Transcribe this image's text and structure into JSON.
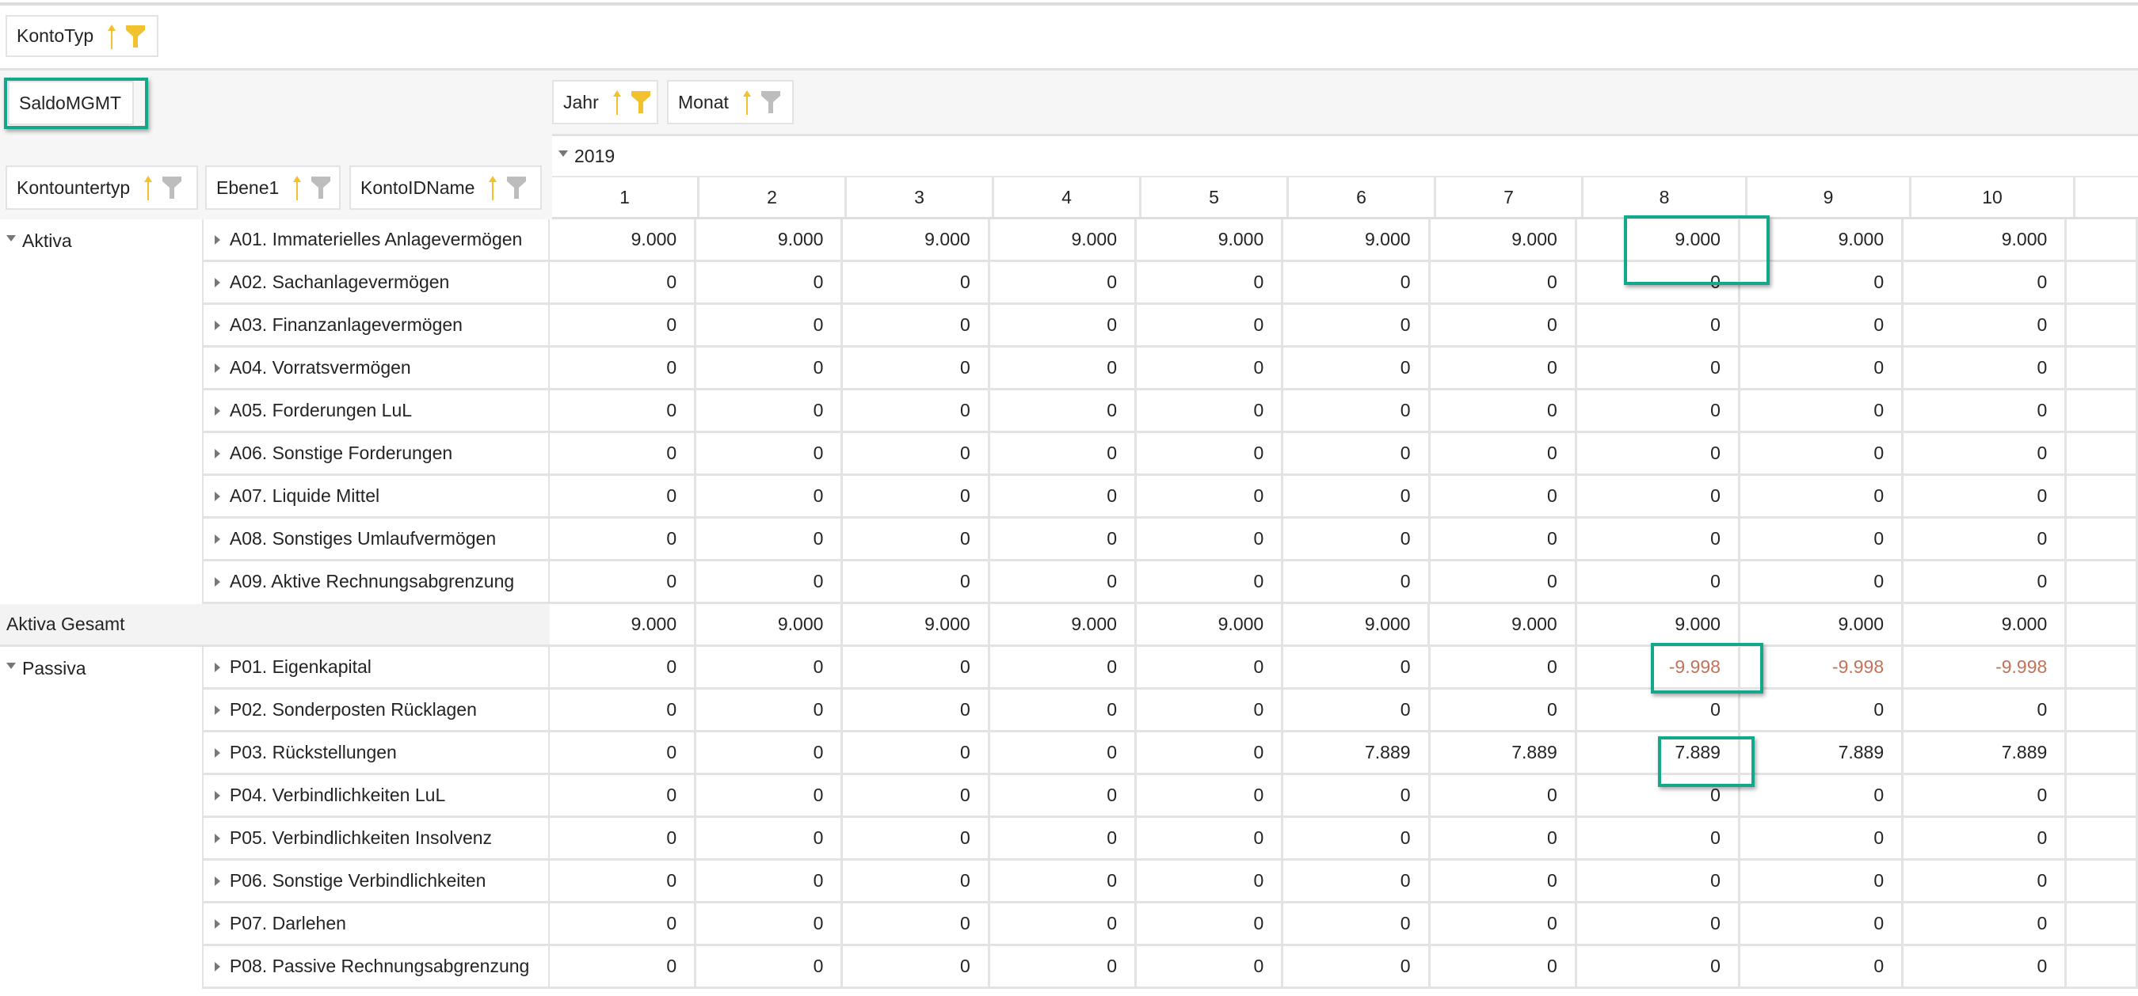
{
  "filters": {
    "page_filter": {
      "label": "KontoTyp",
      "filter_active": true
    },
    "value_field": {
      "label": "SaldoMGMT"
    },
    "column_fields": [
      {
        "label": "Jahr",
        "filter_active": true
      },
      {
        "label": "Monat",
        "filter_active": false
      }
    ],
    "row_fields": [
      {
        "label": "Kontountertyp",
        "filter_active": false
      },
      {
        "label": "Ebene1",
        "filter_active": false
      },
      {
        "label": "KontoIDName",
        "filter_active": false
      }
    ]
  },
  "colors": {
    "accent_filter": "#f2c12e",
    "inactive_filter": "#bdbdbd",
    "sort_arrow": "#f2c12e",
    "negative": "#c2735a",
    "highlight": "#13a889"
  },
  "columns": {
    "year": "2019",
    "months": [
      "1",
      "2",
      "3",
      "4",
      "5",
      "6",
      "7",
      "8",
      "9",
      "10",
      ""
    ]
  },
  "groups": [
    {
      "label": "Aktiva",
      "rows": [
        {
          "label": "A01. Immaterielles Anlagevermögen",
          "values": [
            "9.000",
            "9.000",
            "9.000",
            "9.000",
            "9.000",
            "9.000",
            "9.000",
            "9.000",
            "9.000",
            "9.000"
          ]
        },
        {
          "label": "A02. Sachanlagevermögen",
          "values": [
            "0",
            "0",
            "0",
            "0",
            "0",
            "0",
            "0",
            "0",
            "0",
            "0"
          ]
        },
        {
          "label": "A03. Finanzanlagevermögen",
          "values": [
            "0",
            "0",
            "0",
            "0",
            "0",
            "0",
            "0",
            "0",
            "0",
            "0"
          ]
        },
        {
          "label": "A04. Vorratsvermögen",
          "values": [
            "0",
            "0",
            "0",
            "0",
            "0",
            "0",
            "0",
            "0",
            "0",
            "0"
          ]
        },
        {
          "label": "A05. Forderungen LuL",
          "values": [
            "0",
            "0",
            "0",
            "0",
            "0",
            "0",
            "0",
            "0",
            "0",
            "0"
          ]
        },
        {
          "label": "A06. Sonstige Forderungen",
          "values": [
            "0",
            "0",
            "0",
            "0",
            "0",
            "0",
            "0",
            "0",
            "0",
            "0"
          ]
        },
        {
          "label": "A07. Liquide Mittel",
          "values": [
            "0",
            "0",
            "0",
            "0",
            "0",
            "0",
            "0",
            "0",
            "0",
            "0"
          ]
        },
        {
          "label": "A08. Sonstiges Umlaufvermögen",
          "values": [
            "0",
            "0",
            "0",
            "0",
            "0",
            "0",
            "0",
            "0",
            "0",
            "0"
          ]
        },
        {
          "label": "A09. Aktive Rechnungsabgrenzung",
          "values": [
            "0",
            "0",
            "0",
            "0",
            "0",
            "0",
            "0",
            "0",
            "0",
            "0"
          ]
        }
      ],
      "total": {
        "label": "Aktiva Gesamt",
        "values": [
          "9.000",
          "9.000",
          "9.000",
          "9.000",
          "9.000",
          "9.000",
          "9.000",
          "9.000",
          "9.000",
          "9.000"
        ]
      }
    },
    {
      "label": "Passiva",
      "rows": [
        {
          "label": "P01. Eigenkapital",
          "values": [
            "0",
            "0",
            "0",
            "0",
            "0",
            "0",
            "0",
            "-9.998",
            "-9.998",
            "-9.998"
          ]
        },
        {
          "label": "P02. Sonderposten Rücklagen",
          "values": [
            "0",
            "0",
            "0",
            "0",
            "0",
            "0",
            "0",
            "0",
            "0",
            "0"
          ]
        },
        {
          "label": "P03. Rückstellungen",
          "values": [
            "0",
            "0",
            "0",
            "0",
            "0",
            "7.889",
            "7.889",
            "7.889",
            "7.889",
            "7.889"
          ]
        },
        {
          "label": "P04. Verbindlichkeiten LuL",
          "values": [
            "0",
            "0",
            "0",
            "0",
            "0",
            "0",
            "0",
            "0",
            "0",
            "0"
          ]
        },
        {
          "label": "P05. Verbindlichkeiten Insolvenz",
          "values": [
            "0",
            "0",
            "0",
            "0",
            "0",
            "0",
            "0",
            "0",
            "0",
            "0"
          ]
        },
        {
          "label": "P06. Sonstige Verbindlichkeiten",
          "values": [
            "0",
            "0",
            "0",
            "0",
            "0",
            "0",
            "0",
            "0",
            "0",
            "0"
          ]
        },
        {
          "label": "P07. Darlehen",
          "values": [
            "0",
            "0",
            "0",
            "0",
            "0",
            "0",
            "0",
            "0",
            "0",
            "0"
          ]
        },
        {
          "label": "P08. Passive Rechnungsabgrenzung",
          "values": [
            "0",
            "0",
            "0",
            "0",
            "0",
            "0",
            "0",
            "0",
            "0",
            "0"
          ]
        }
      ]
    }
  ]
}
